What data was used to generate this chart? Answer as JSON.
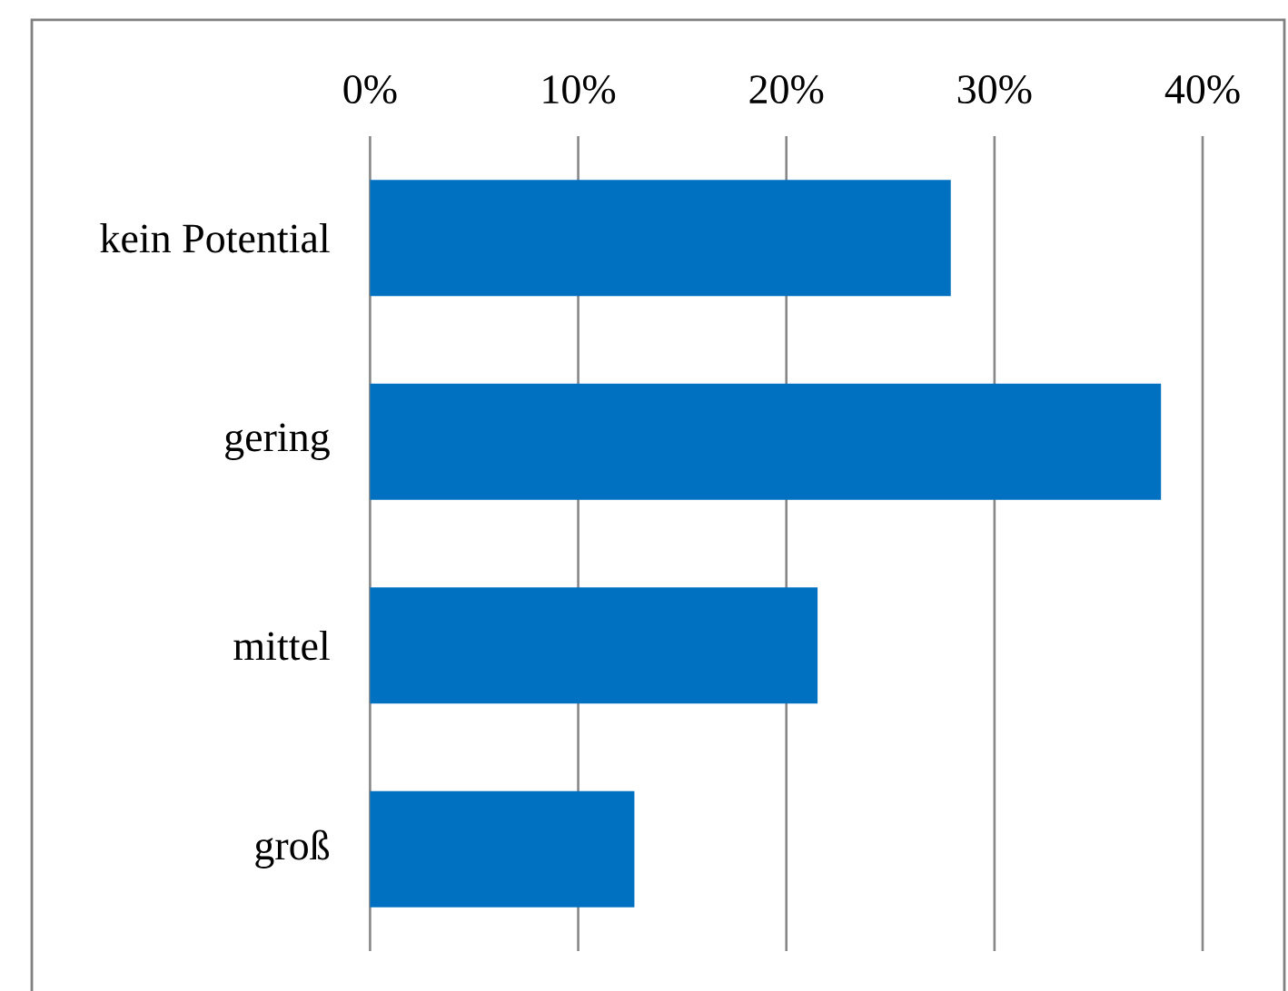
{
  "chart_data": {
    "type": "bar",
    "orientation": "horizontal",
    "categories": [
      "kein Potential",
      "gering",
      "mittel",
      "groß"
    ],
    "values": [
      27.9,
      38.0,
      21.5,
      12.7
    ],
    "color": "#0070c0",
    "xlim": [
      0,
      40
    ],
    "xticks": [
      {
        "value": 0,
        "label": "0%"
      },
      {
        "value": 10,
        "label": "10%"
      },
      {
        "value": 20,
        "label": "20%"
      },
      {
        "value": 30,
        "label": "30%"
      },
      {
        "value": 40,
        "label": "40%"
      }
    ],
    "grid": "x"
  }
}
